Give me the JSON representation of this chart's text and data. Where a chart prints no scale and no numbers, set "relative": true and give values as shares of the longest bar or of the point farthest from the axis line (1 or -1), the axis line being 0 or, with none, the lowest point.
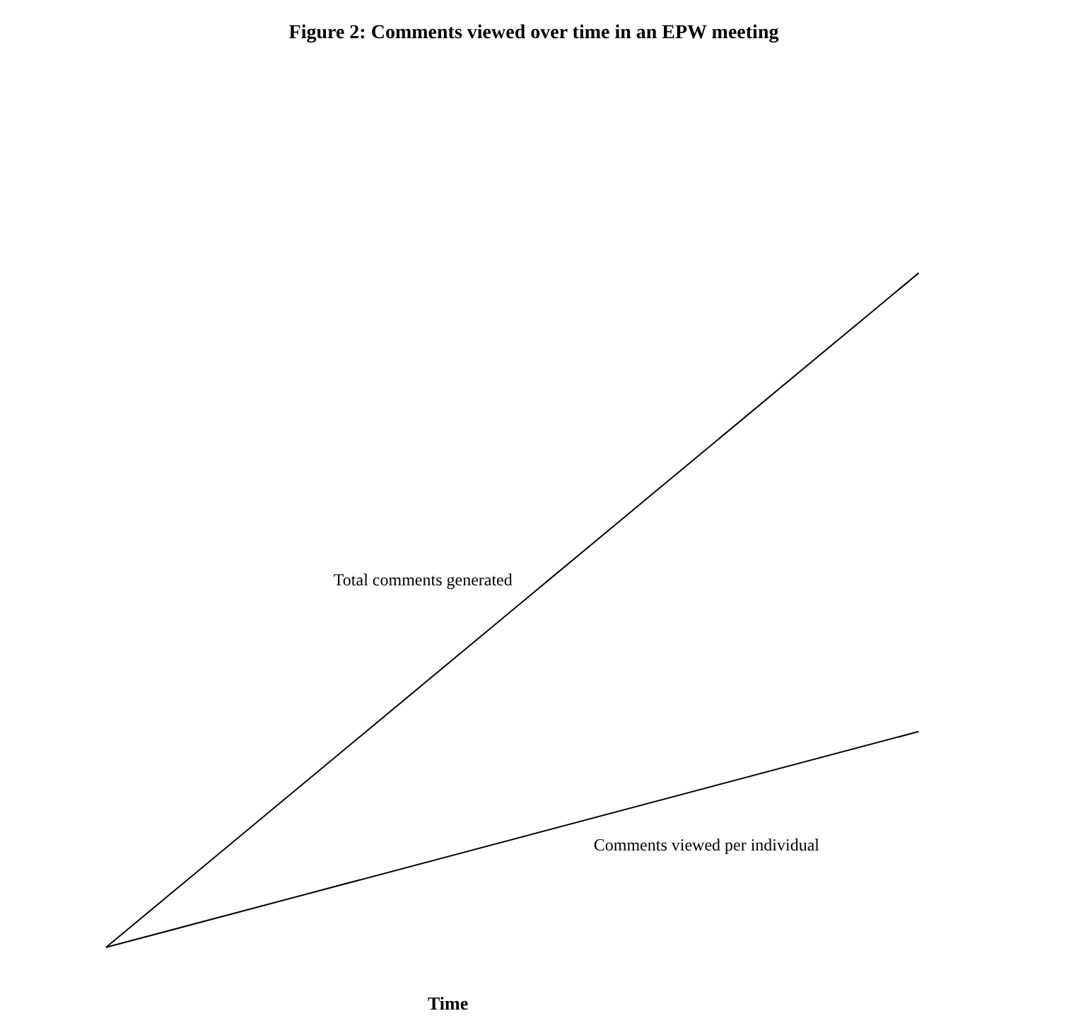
{
  "chart_data": {
    "type": "line",
    "title": "Figure 2: Comments viewed over time in an EPW meeting",
    "xlabel": "Time",
    "categories": [
      null,
      null
    ],
    "relative": true,
    "series": [
      {
        "name": "Total comments generated",
        "color": "#000000",
        "values": [
          0,
          1
        ]
      },
      {
        "name": "Comments viewed per individual",
        "color": "#000000",
        "values": [
          0,
          0.32
        ]
      }
    ]
  }
}
